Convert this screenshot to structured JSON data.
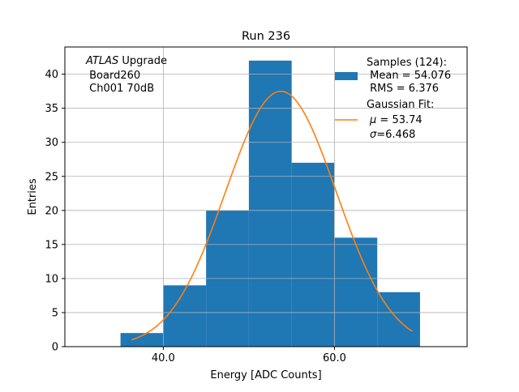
{
  "chart_data": {
    "type": "bar",
    "title": "Run 236",
    "xlabel": "Energy [ADC Counts]",
    "ylabel": "Entries",
    "xlim": [
      28.5,
      75.5
    ],
    "ylim": [
      0,
      44
    ],
    "x_ticks": [
      40,
      60
    ],
    "x_tick_labels": [
      "40.0",
      "60.0"
    ],
    "y_ticks": [
      0,
      5,
      10,
      15,
      20,
      25,
      30,
      35,
      40
    ],
    "grid": true,
    "legend_position": "top-right",
    "bins": [
      {
        "x0": 35,
        "x1": 40,
        "count": 2
      },
      {
        "x0": 40,
        "x1": 45,
        "count": 9
      },
      {
        "x0": 45,
        "x1": 50,
        "count": 20
      },
      {
        "x0": 50,
        "x1": 55,
        "count": 42
      },
      {
        "x0": 55,
        "x1": 60,
        "count": 27
      },
      {
        "x0": 60,
        "x1": 65,
        "count": 16
      },
      {
        "x0": 65,
        "x1": 70,
        "count": 8
      }
    ],
    "fit": {
      "mu": 53.74,
      "sigma": 6.468,
      "peak": 37.5,
      "x_range": [
        36.3,
        69.1
      ]
    },
    "annotation": {
      "italic": "ATLAS",
      "rest": " Upgrade",
      "line2": " Board260",
      "line3": " Ch001 70dB"
    },
    "legend": {
      "histogram": {
        "line1": "Samples (124):",
        "line2": " Mean = 54.076",
        "line3": " RMS = 6.376"
      },
      "fit": {
        "line1": "Gaussian Fit:",
        "mu_symbol": "μ",
        "mu_text": " = 53.74",
        "sigma_symbol": "σ",
        "sigma_text": "=6.468"
      }
    },
    "colors": {
      "bars": "#1f77b4",
      "fit_line": "#ff7f0e",
      "grid": "#b0b0b0"
    }
  }
}
